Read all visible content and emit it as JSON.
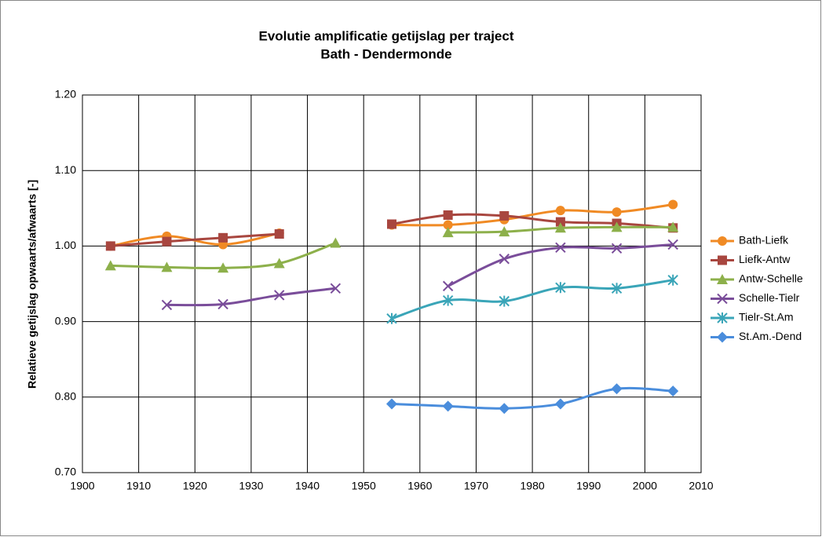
{
  "chart_data": {
    "type": "line",
    "title": "Evolutie amplificatie getijslag per traject",
    "subtitle": "Bath - Dendermonde",
    "y_label": "Relatieve getijslag opwaarts/afwaarts [-]",
    "x": [
      1905,
      1915,
      1925,
      1935,
      1945,
      1955,
      1965,
      1975,
      1985,
      1995,
      2005
    ],
    "series": [
      {
        "name": "Bath-Liefk",
        "color": "#f08a24",
        "marker": "circle",
        "values": [
          1.0,
          1.013,
          1.002,
          1.017,
          null,
          1.028,
          1.028,
          1.035,
          1.047,
          1.045,
          1.055
        ]
      },
      {
        "name": "Liefk-Antw",
        "color": "#a8463f",
        "marker": "square",
        "values": [
          1.0,
          1.006,
          1.011,
          1.016,
          null,
          1.029,
          1.041,
          1.04,
          1.032,
          1.03,
          1.024
        ]
      },
      {
        "name": "Antw-Schelle",
        "color": "#8db04b",
        "marker": "triangle",
        "values": [
          0.974,
          0.972,
          0.971,
          0.977,
          1.004,
          null,
          1.018,
          1.019,
          1.024,
          1.025,
          1.025
        ]
      },
      {
        "name": "Schelle-Tielr",
        "color": "#7a4d9a",
        "marker": "x",
        "values": [
          null,
          0.922,
          0.923,
          0.935,
          0.944,
          null,
          0.947,
          0.983,
          0.998,
          0.997,
          1.002
        ]
      },
      {
        "name": "Tielr-St.Am",
        "color": "#3aa5b8",
        "marker": "star",
        "values": [
          null,
          null,
          null,
          null,
          null,
          0.904,
          0.928,
          0.927,
          0.945,
          0.944,
          0.955
        ]
      },
      {
        "name": "St.Am.-Dend",
        "color": "#4a8ddc",
        "marker": "diamond",
        "values": [
          null,
          null,
          null,
          null,
          null,
          0.791,
          0.788,
          0.785,
          0.791,
          0.811,
          0.808
        ]
      }
    ],
    "xlim": [
      1900,
      2010
    ],
    "xticks": [
      1900,
      1910,
      1920,
      1930,
      1940,
      1950,
      1960,
      1970,
      1980,
      1990,
      2000,
      2010
    ],
    "ylim": [
      0.7,
      1.2
    ],
    "yticks": [
      {
        "value": 0.7,
        "label": "0.70"
      },
      {
        "value": 0.8,
        "label": "0.80"
      },
      {
        "value": 0.9,
        "label": "0.90"
      },
      {
        "value": 1.0,
        "label": "1.00"
      },
      {
        "value": 1.1,
        "label": "1.10"
      },
      {
        "value": 1.2,
        "label": "1.20"
      }
    ],
    "grid": true,
    "legend": "right"
  }
}
